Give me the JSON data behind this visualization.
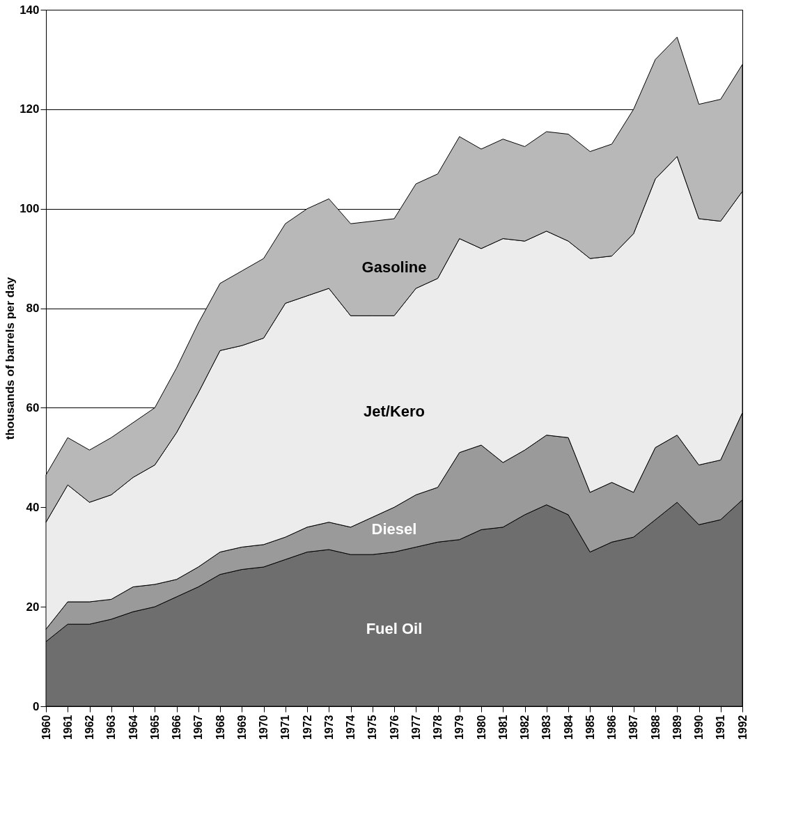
{
  "chart_data": {
    "type": "area",
    "stacked": true,
    "ylabel": "thousands of barrels per day",
    "categories": [
      "1960",
      "1961",
      "1962",
      "1963",
      "1964",
      "1965",
      "1966",
      "1967",
      "1968",
      "1969",
      "1970",
      "1971",
      "1972",
      "1973",
      "1974",
      "1975",
      "1976",
      "1977",
      "1978",
      "1979",
      "1980",
      "1981",
      "1982",
      "1983",
      "1984",
      "1985",
      "1986",
      "1987",
      "1988",
      "1989",
      "1990",
      "1991",
      "1992"
    ],
    "ylim": [
      0,
      140
    ],
    "yticks": [
      0,
      20,
      40,
      60,
      80,
      100,
      120,
      140
    ],
    "grid": "y",
    "legend": false,
    "series": [
      {
        "name": "Fuel Oil",
        "color": "#6e6e6e",
        "values": [
          13,
          16.5,
          16.5,
          17.5,
          19,
          20,
          22,
          24,
          26.5,
          27.5,
          28,
          29.5,
          31,
          31.5,
          30.5,
          30.5,
          31,
          32,
          33,
          33.5,
          35.5,
          36,
          38.5,
          40.5,
          38.5,
          31,
          33,
          34,
          37.5,
          41,
          36.5,
          37.5,
          41.5
        ]
      },
      {
        "name": "Diesel",
        "color": "#9a9a9a",
        "values": [
          2.5,
          4.5,
          4.5,
          4,
          5,
          4.5,
          3.5,
          4,
          4.5,
          4.5,
          4.5,
          4.5,
          5,
          5.5,
          5.5,
          7.5,
          9,
          10.5,
          11,
          17.5,
          17,
          13,
          13,
          14,
          15.5,
          12,
          12,
          9,
          14.5,
          13.5,
          12,
          12,
          17.5
        ]
      },
      {
        "name": "Jet/Kero",
        "color": "#ececec",
        "values": [
          21.5,
          23.5,
          20,
          21,
          22,
          24,
          29.5,
          35,
          40.5,
          40.5,
          41.5,
          47,
          46.5,
          47,
          42.5,
          40.5,
          38.5,
          41.5,
          42,
          43,
          39.5,
          45,
          42,
          41,
          39.5,
          47,
          45.5,
          52,
          54,
          56,
          49.5,
          48,
          44.5
        ]
      },
      {
        "name": "Gasoline",
        "color": "#b8b8b8",
        "values": [
          9.5,
          9.5,
          10.5,
          11.5,
          11,
          11.5,
          13,
          14,
          13.5,
          15,
          16,
          16,
          17.5,
          18,
          18.5,
          19,
          19.5,
          21,
          21,
          20.5,
          20,
          20,
          19,
          20,
          21.5,
          21.5,
          22.5,
          25,
          24,
          24,
          23,
          24.5,
          25.5
        ]
      }
    ]
  }
}
